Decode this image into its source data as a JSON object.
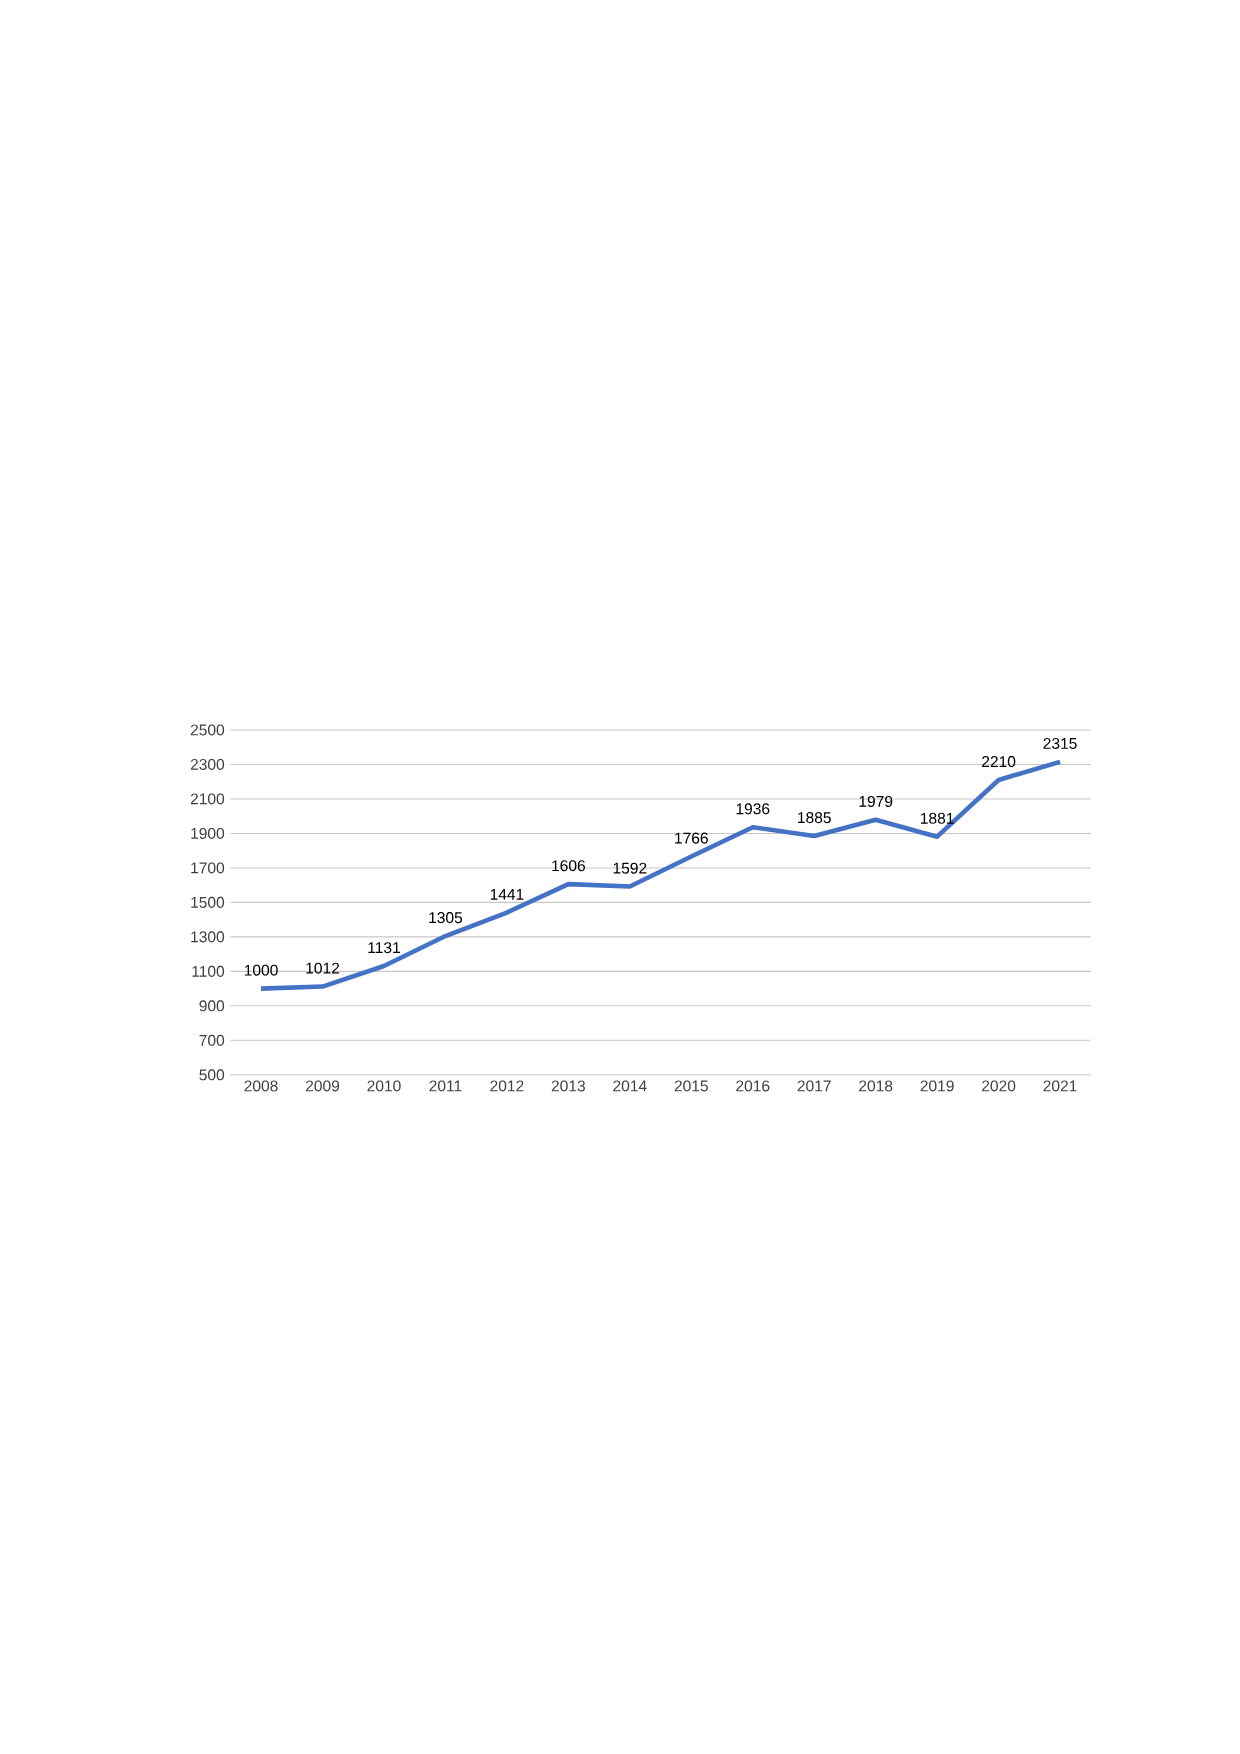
{
  "chart_data": {
    "type": "line",
    "categories": [
      "2008",
      "2009",
      "2010",
      "2011",
      "2012",
      "2013",
      "2014",
      "2015",
      "2016",
      "2017",
      "2018",
      "2019",
      "2020",
      "2021"
    ],
    "values": [
      1000,
      1012,
      1131,
      1305,
      1441,
      1606,
      1592,
      1766,
      1936,
      1885,
      1979,
      1881,
      2210,
      2315
    ],
    "color": "#4472c4",
    "ylim": [
      500,
      2500
    ],
    "yticks": [
      500,
      700,
      900,
      1100,
      1300,
      1500,
      1700,
      1900,
      2100,
      2300,
      2500
    ],
    "grid": "y",
    "data_labels": true,
    "marker": "none",
    "line_style": "solid"
  }
}
